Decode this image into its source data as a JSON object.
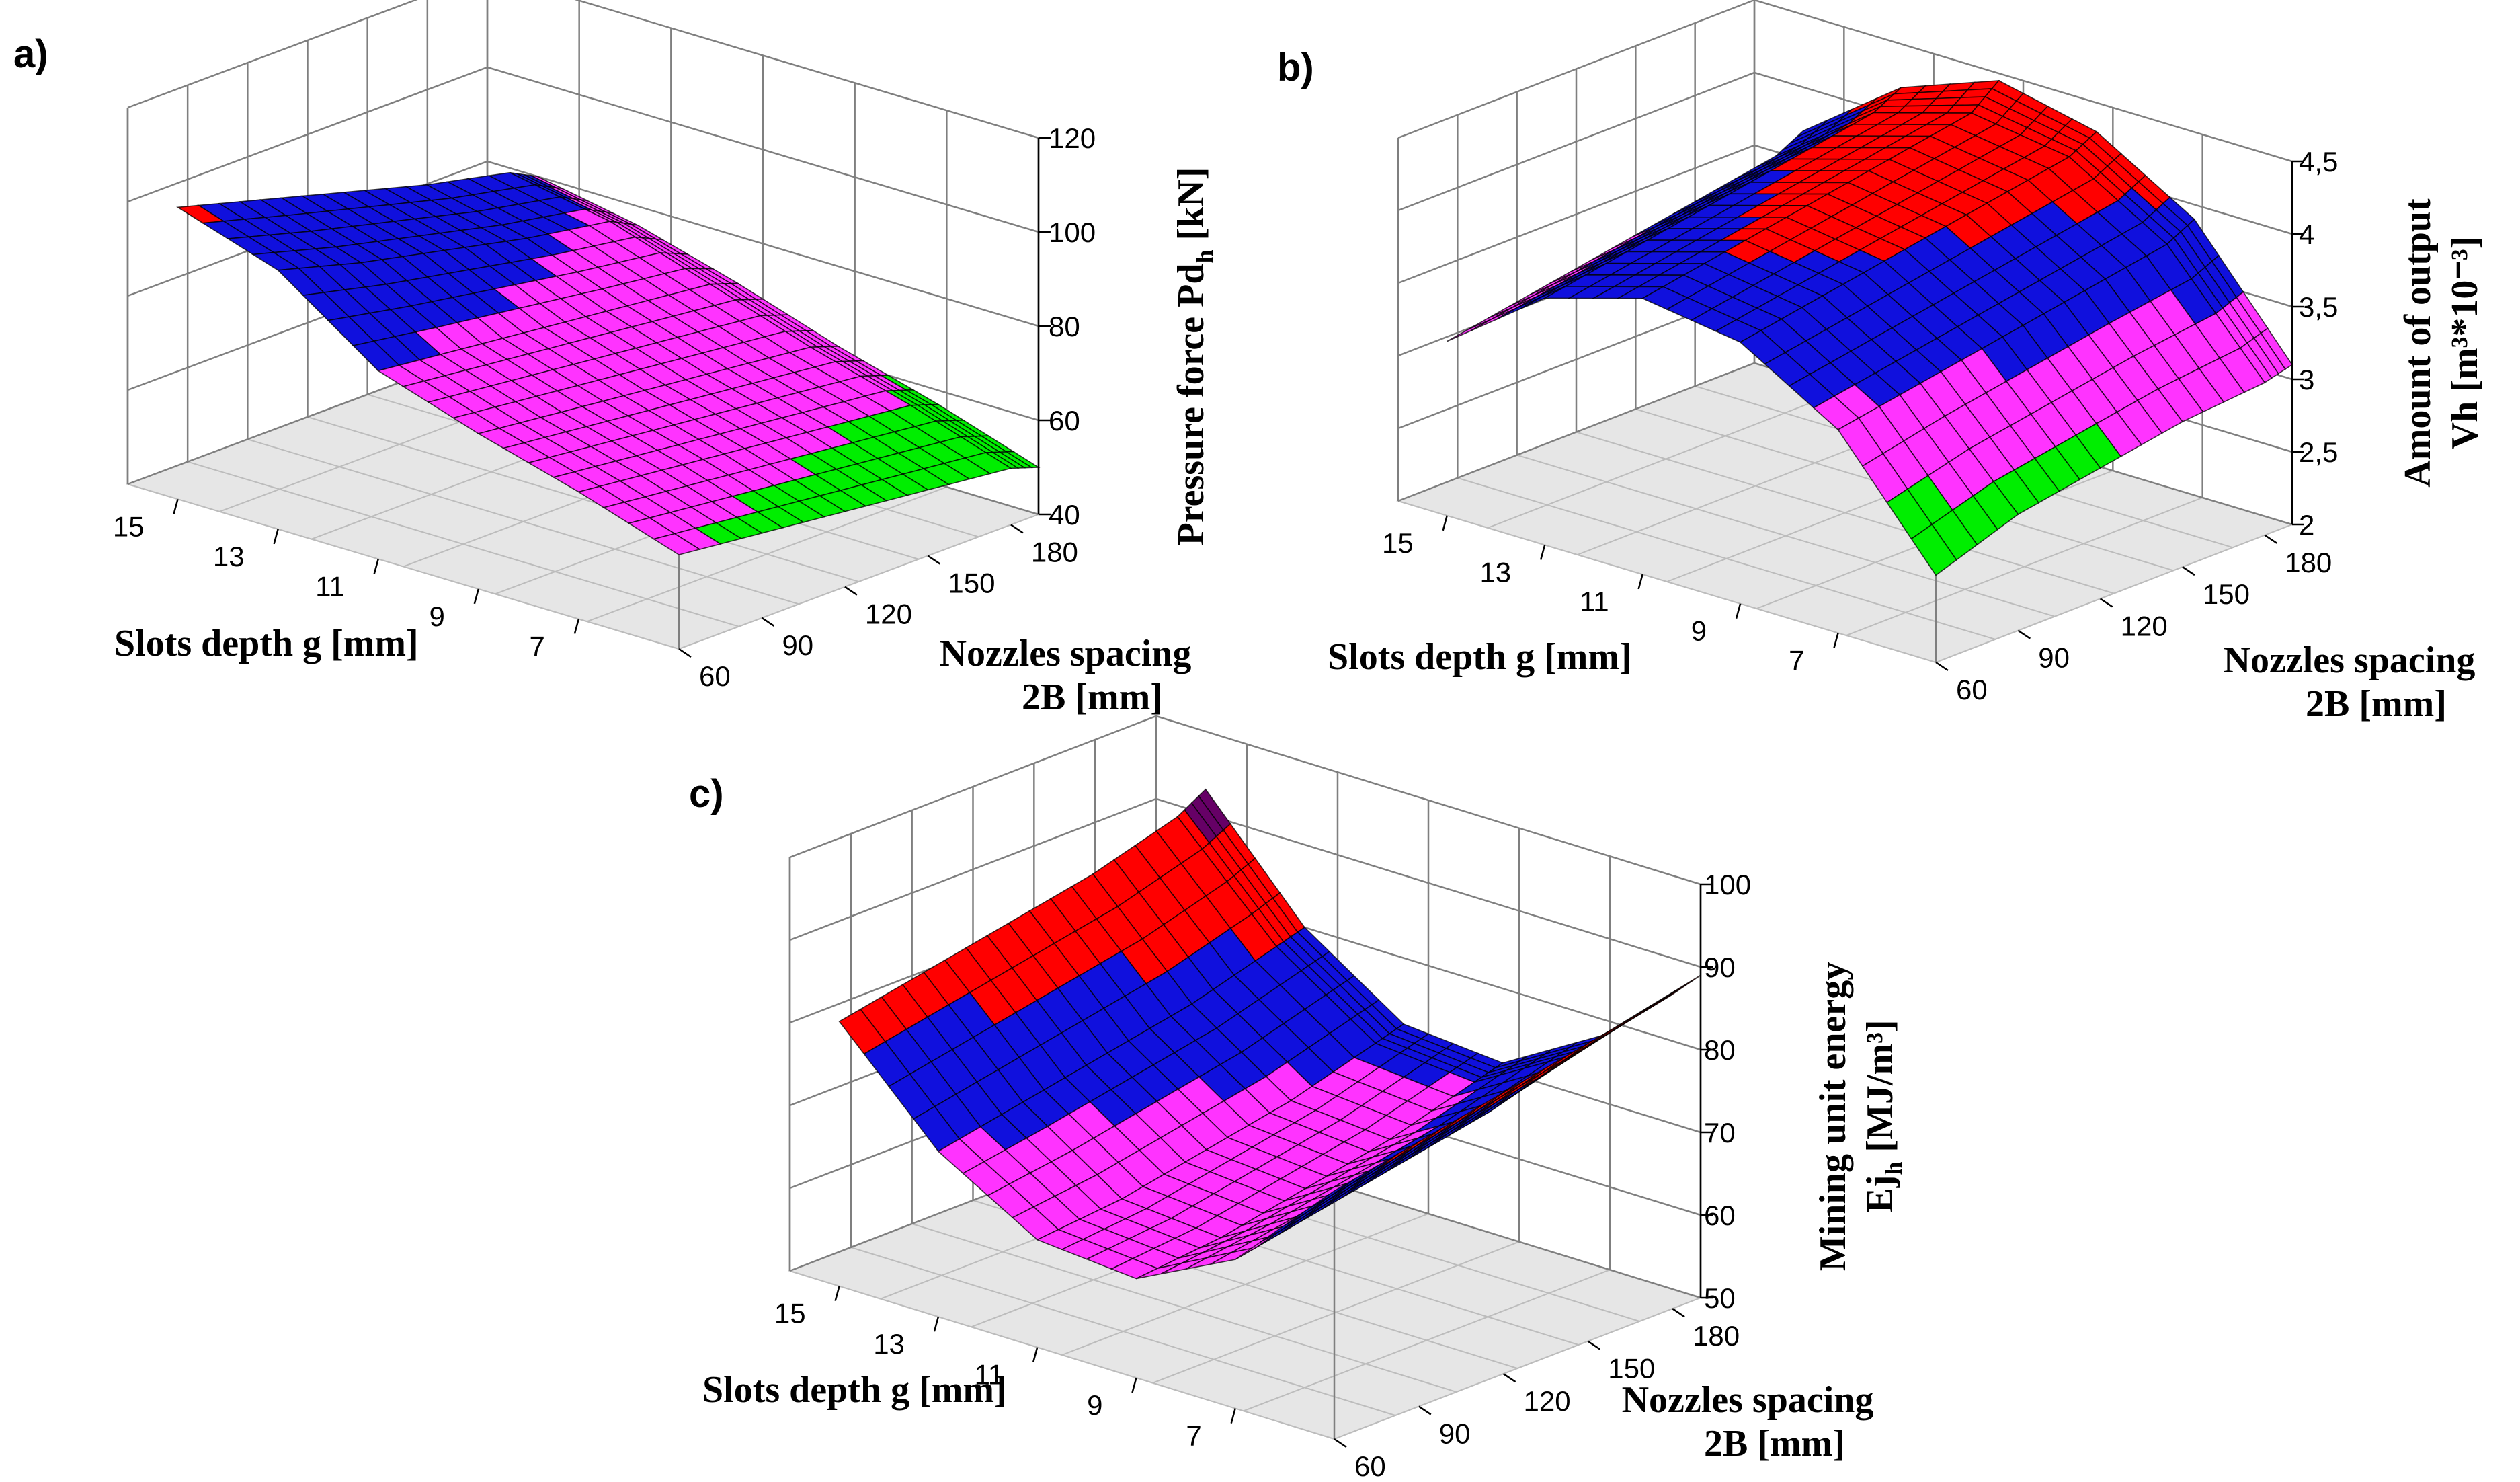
{
  "figure_title": "",
  "colors": {
    "band_1": "#00ee00",
    "band_2": "#ff33ff",
    "band_3": "#1010dd",
    "band_4": "#ff0000",
    "band_5": "#660066",
    "floor": "#e6e6e6",
    "grid": "#7f7f7f"
  },
  "chart_data": [
    {
      "panel_label": "a)",
      "type": "surface3d",
      "x_label": "Slots depth  g [mm]",
      "y_label_lines": [
        "Nozzles spacing",
        "2B [mm]"
      ],
      "z_label": "Pressure force Pd",
      "z_label_sub": "h",
      "z_label_unit": " [kN]",
      "x_ticks": [
        "15",
        "13",
        "11",
        "9",
        "7"
      ],
      "y_ticks": [
        "60",
        "90",
        "120",
        "150",
        "180"
      ],
      "z_ticks": [
        "40",
        "60",
        "80",
        "100",
        "120"
      ],
      "x_range": [
        5,
        16
      ],
      "y_range": [
        60,
        190
      ],
      "z_range": [
        40,
        120
      ],
      "z_bands": [
        40,
        60,
        80,
        100,
        120
      ],
      "surface": {
        "x": [
          5,
          7,
          9,
          11,
          13,
          15
        ],
        "y": [
          60,
          90,
          120,
          150,
          180,
          190
        ],
        "z": [
          [
            60,
            67,
            73,
            80,
            95,
            102
          ],
          [
            58,
            65,
            71,
            78,
            90,
            97
          ],
          [
            56,
            63,
            69,
            76,
            86,
            92
          ],
          [
            54,
            61,
            67,
            74,
            82,
            87
          ],
          [
            52,
            59,
            65,
            72,
            79,
            83
          ],
          [
            50,
            57,
            63,
            70,
            76,
            80
          ]
        ]
      }
    },
    {
      "panel_label": "b)",
      "type": "surface3d",
      "x_label": "Slots depth  g [mm]",
      "y_label_lines": [
        "Nozzles spacing",
        "2B [mm]"
      ],
      "z_label": "Amount of output",
      "z_label_line2": "Vh [m³*10⁻³]",
      "x_ticks": [
        "15",
        "13",
        "11",
        "9",
        "7"
      ],
      "y_ticks": [
        "60",
        "90",
        "120",
        "150",
        "180"
      ],
      "z_ticks": [
        "2",
        "2,5",
        "3",
        "3,5",
        "4",
        "4,5"
      ],
      "x_range": [
        5,
        16
      ],
      "y_range": [
        60,
        190
      ],
      "z_range": [
        2,
        4.5
      ],
      "z_bands": [
        2,
        3,
        3.5,
        4,
        4.5
      ],
      "surface": {
        "x": [
          5,
          7,
          9,
          11,
          13,
          15
        ],
        "y": [
          60,
          90,
          120,
          150,
          180,
          190
        ],
        "z": [
          [
            2.6,
            3.4,
            3.8,
            3.9,
            3.7,
            3.2
          ],
          [
            2.8,
            3.5,
            3.9,
            4.0,
            3.8,
            3.3
          ],
          [
            2.9,
            3.6,
            4.0,
            4.1,
            3.9,
            3.4
          ],
          [
            3.0,
            3.7,
            4.1,
            4.2,
            4.0,
            3.5
          ],
          [
            3.05,
            3.8,
            4.2,
            4.3,
            4.1,
            3.6
          ],
          [
            3.1,
            3.9,
            4.3,
            4.45,
            4.2,
            3.7
          ]
        ]
      }
    },
    {
      "panel_label": "c)",
      "type": "surface3d",
      "x_label": "Slots depth  g [mm]",
      "y_label_lines": [
        "Nozzles spacing",
        "2B [mm]"
      ],
      "z_label": "Mining unit  energy",
      "z_label_line2": "Ej",
      "z_label_sub": "h",
      "z_label_unit": " [MJ/m³]",
      "x_ticks": [
        "15",
        "13",
        "11",
        "9",
        "7"
      ],
      "y_ticks": [
        "60",
        "90",
        "120",
        "150",
        "180"
      ],
      "z_ticks": [
        "50",
        "60",
        "70",
        "80",
        "90",
        "100"
      ],
      "x_range": [
        5,
        16
      ],
      "y_range": [
        60,
        190
      ],
      "z_range": [
        50,
        100
      ],
      "z_bands": [
        50,
        60,
        70,
        80,
        90,
        100
      ],
      "surface": {
        "x": [
          5,
          7,
          9,
          11,
          13,
          15
        ],
        "y": [
          60,
          90,
          120,
          150,
          180,
          190
        ],
        "z": [
          [
            80,
            68,
            62,
            63,
            70,
            82
          ],
          [
            82,
            70,
            63,
            64,
            72,
            84
          ],
          [
            84,
            72,
            65,
            66,
            74,
            86
          ],
          [
            86,
            74,
            67,
            68,
            76,
            88
          ],
          [
            88,
            77,
            70,
            71,
            79,
            91
          ],
          [
            89,
            78,
            71,
            72,
            80,
            93
          ]
        ]
      }
    }
  ]
}
